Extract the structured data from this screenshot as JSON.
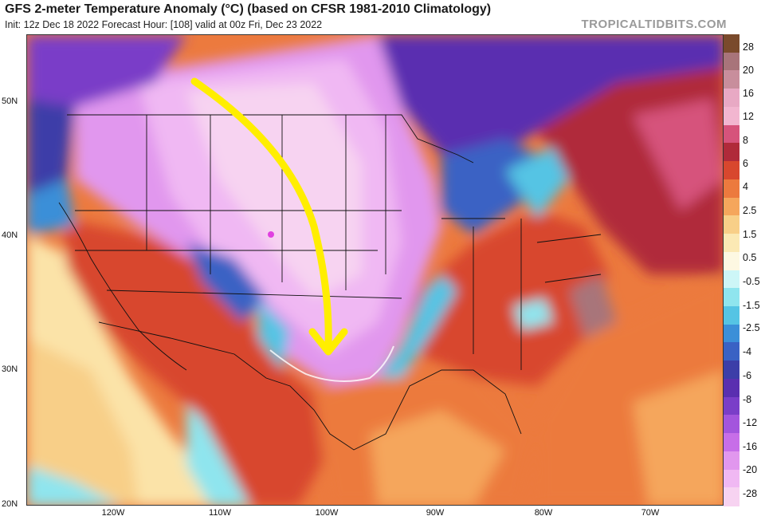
{
  "header": {
    "title": "GFS 2-meter Temperature Anomaly (°C) (based on CFSR 1981-2010 Climatology)",
    "subtitle": "Init: 12z Dec 18 2022   Forecast Hour: [108]   valid at 00z Fri, Dec 23 2022",
    "brand": "TROPICALTIDBITS.COM"
  },
  "map": {
    "lat_labels": [
      "50N",
      "40N",
      "30N",
      "20N"
    ],
    "lon_labels": [
      "120W",
      "110W",
      "100W",
      "90W",
      "80W",
      "70W"
    ],
    "annotation": "yellow-arrow"
  },
  "colorbar": {
    "labels": [
      "28",
      "20",
      "16",
      "12",
      "8",
      "6",
      "4",
      "2.5",
      "1.5",
      "0.5",
      "-0.5",
      "-1.5",
      "-2.5",
      "-4",
      "-6",
      "-8",
      "-12",
      "-16",
      "-20",
      "-28"
    ],
    "colors": [
      "#7a4a2c",
      "#a8747a",
      "#c88e9c",
      "#e8a9c4",
      "#f2b6d0",
      "#d6537b",
      "#b02a3a",
      "#d8472e",
      "#ec7a3e",
      "#f5a65c",
      "#f8cf88",
      "#fbe9b4",
      "#fdf8e2",
      "#cdf6f7",
      "#8fe5ee",
      "#55c4e4",
      "#3b8fd8",
      "#3a62c4",
      "#3c3ea8",
      "#5a2fb0",
      "#7a3ec8",
      "#a355dd",
      "#c76ee8",
      "#e197ee",
      "#f0b8f3",
      "#f7d3f1"
    ]
  }
}
